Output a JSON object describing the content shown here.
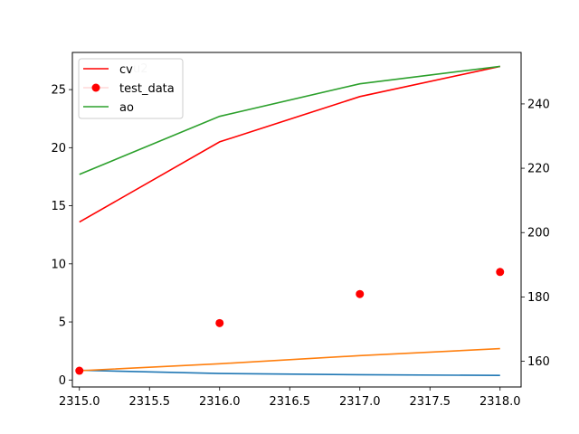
{
  "chart_data": {
    "type": "line",
    "x": [
      2315.0,
      2316.0,
      2317.0,
      2318.0
    ],
    "xlim": [
      2314.95,
      2318.15
    ],
    "xticks": [
      "2315.0",
      "2315.5",
      "2316.0",
      "2316.5",
      "2317.0",
      "2317.5",
      "2318.0"
    ],
    "left_axis": {
      "ylim": [
        -0.6,
        28.2
      ],
      "yticks": [
        "0",
        "5",
        "10",
        "15",
        "20",
        "25"
      ]
    },
    "right_axis": {
      "ylim": [
        152,
        256
      ],
      "yticks": [
        "160",
        "180",
        "200",
        "220",
        "240"
      ]
    },
    "series": [
      {
        "name": "cv",
        "style": "line",
        "axis": "left",
        "color": "#ff0000",
        "values": [
          13.6,
          20.5,
          24.4,
          27.0
        ]
      },
      {
        "name": "test_data",
        "style": "points",
        "axis": "left",
        "color": "#ff0000",
        "values": [
          0.8,
          4.9,
          7.4,
          9.3
        ]
      },
      {
        "name": "ao",
        "style": "line",
        "axis": "left",
        "color": "#2ca02c",
        "values": [
          17.7,
          22.7,
          25.5,
          27.0
        ]
      },
      {
        "name": "",
        "style": "line",
        "axis": "right",
        "color": "#1f77b4",
        "values": [
          157.2,
          156.2,
          155.8,
          155.6
        ]
      },
      {
        "name": "",
        "style": "line",
        "axis": "left",
        "color": "#ff7f0e",
        "values": [
          0.8,
          1.4,
          2.1,
          2.7
        ]
      }
    ],
    "legend": {
      "position": "top-left",
      "entries": [
        "cv",
        "test_data",
        "ao"
      ],
      "overlapped_text": "u2"
    },
    "grid": false
  }
}
